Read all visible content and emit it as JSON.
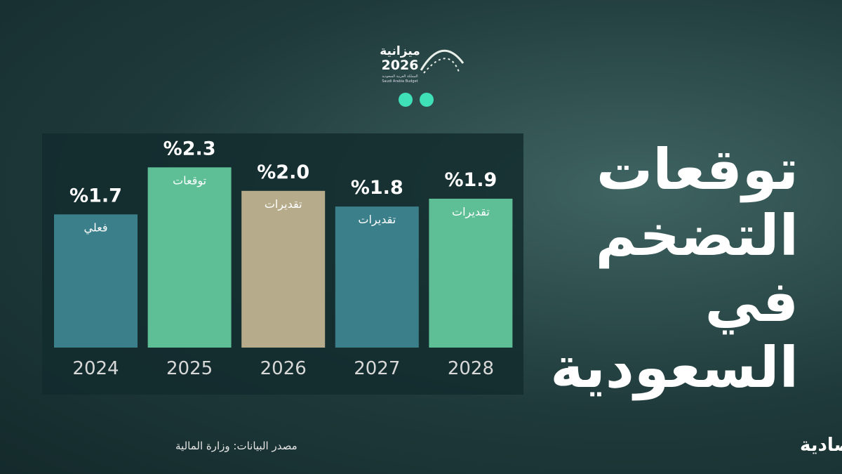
{
  "chart_data": {
    "type": "bar",
    "title_lines": [
      "توقعات",
      "التضخم",
      "في",
      "السعودية"
    ],
    "categories": [
      "2024",
      "2025",
      "2026",
      "2027",
      "2028"
    ],
    "values": [
      1.7,
      2.3,
      2.0,
      1.8,
      1.9
    ],
    "value_labels": [
      "%1.7",
      "%2.3",
      "%2.0",
      "%1.8",
      "%1.9"
    ],
    "bar_notes": [
      "فعلي",
      "توقعات",
      "تقديرات",
      "تقديرات",
      "تقديرات"
    ],
    "colors": [
      "#3b7f8b",
      "#5ebf97",
      "#b6ab8b",
      "#3b7f8b",
      "#5ebf97"
    ],
    "ylim": [
      0,
      2.5
    ],
    "source": "مصدر البيانات: وزارة المالية",
    "publisher": "الاقتصادية",
    "budget_logo": {
      "word": "ميزانية",
      "year": "2026",
      "line1": "المملكة العربية السعودية",
      "line2": "Saudi Arabia Budget"
    }
  }
}
